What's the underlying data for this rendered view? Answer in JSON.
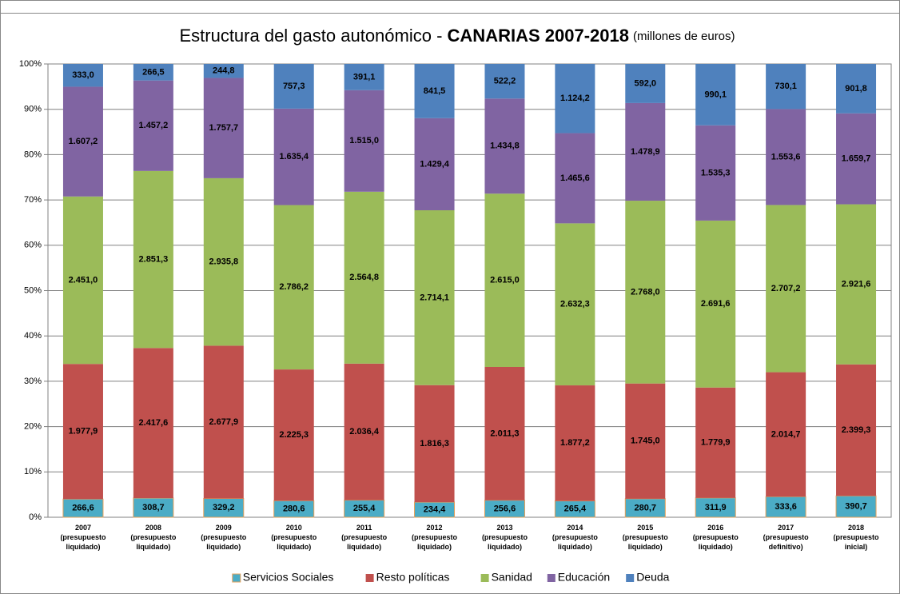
{
  "chart_data": {
    "type": "bar",
    "stacked": "percent",
    "title": "Estructura del gasto autonómico - ",
    "title_bold": "CANARIAS 2007-2018",
    "subtitle": "(millones de euros)",
    "categories": [
      "2007\n(presupuesto\nliquidado)",
      "2008\n(presupuesto\nliquidado)",
      "2009\n(presupuesto\nliquidado)",
      "2010\n(presupuesto\nliquidado)",
      "2011\n(presupuesto\nliquidado)",
      "2012\n(presupuesto\nliquidado)",
      "2013\n(presupuesto\nliquidado)",
      "2014\n(presupuesto\nliquidado)",
      "2015\n(presupuesto\nliquidado)",
      "2016\n(presupuesto\nliquidado)",
      "2017\n(presupuesto\ndefinitivo)",
      "2018\n(presupuesto\ninicial)"
    ],
    "series": [
      {
        "name": "Servicios Sociales",
        "color": "#4bacc6",
        "values": [
          266.6,
          308.7,
          329.2,
          280.6,
          255.4,
          234.4,
          256.6,
          265.4,
          280.7,
          311.9,
          333.6,
          390.7
        ],
        "value_labels": [
          "266,6",
          "308,7",
          "329,2",
          "280,6",
          "255,4",
          "234,4",
          "256,6",
          "265,4",
          "280,7",
          "311,9",
          "333,6",
          "390,7"
        ]
      },
      {
        "name": "Resto políticas",
        "color": "#c0504d",
        "values": [
          1977.9,
          2417.6,
          2677.9,
          2225.3,
          2036.4,
          1816.3,
          2011.3,
          1877.2,
          1745.0,
          1779.9,
          2014.7,
          2399.3
        ],
        "value_labels": [
          "1.977,9",
          "2.417,6",
          "2.677,9",
          "2.225,3",
          "2.036,4",
          "1.816,3",
          "2.011,3",
          "1.877,2",
          "1.745,0",
          "1.779,9",
          "2.014,7",
          "2.399,3"
        ]
      },
      {
        "name": "Sanidad",
        "color": "#9bbb59",
        "values": [
          2451.0,
          2851.3,
          2935.8,
          2786.2,
          2564.8,
          2714.1,
          2615.0,
          2632.3,
          2768.0,
          2691.6,
          2707.2,
          2921.6
        ],
        "value_labels": [
          "2.451,0",
          "2.851,3",
          "2.935,8",
          "2.786,2",
          "2.564,8",
          "2.714,1",
          "2.615,0",
          "2.632,3",
          "2.768,0",
          "2.691,6",
          "2.707,2",
          "2.921,6"
        ]
      },
      {
        "name": "Educación",
        "color": "#8064a2",
        "values": [
          1607.2,
          1457.2,
          1757.7,
          1635.4,
          1515.0,
          1429.4,
          1434.8,
          1465.6,
          1478.9,
          1535.3,
          1553.6,
          1659.7
        ],
        "value_labels": [
          "1.607,2",
          "1.457,2",
          "1.757,7",
          "1.635,4",
          "1.515,0",
          "1.429,4",
          "1.434,8",
          "1.465,6",
          "1.478,9",
          "1.535,3",
          "1.553,6",
          "1.659,7"
        ]
      },
      {
        "name": "Deuda",
        "color": "#4f81bd",
        "values": [
          333.0,
          266.5,
          244.8,
          757.3,
          391.1,
          841.5,
          522.2,
          1124.2,
          592.0,
          990.1,
          730.1,
          901.8
        ],
        "value_labels": [
          "333,0",
          "266,5",
          "244,8",
          "757,3",
          "391,1",
          "841,5",
          "522,2",
          "1.124,2",
          "592,0",
          "990,1",
          "730,1",
          "901,8"
        ]
      }
    ],
    "ylim": [
      0,
      100
    ],
    "yticks": [
      {
        "value": 0,
        "label": "0%"
      },
      {
        "value": 10,
        "label": "10%"
      },
      {
        "value": 20,
        "label": "20%"
      },
      {
        "value": 30,
        "label": "30%"
      },
      {
        "value": 40,
        "label": "40%"
      },
      {
        "value": 50,
        "label": "50%"
      },
      {
        "value": 60,
        "label": "60%"
      },
      {
        "value": 70,
        "label": "70%"
      },
      {
        "value": 80,
        "label": "80%"
      },
      {
        "value": 90,
        "label": "90%"
      },
      {
        "value": 100,
        "label": "100%"
      }
    ],
    "grid": true,
    "legend": "bottom"
  }
}
